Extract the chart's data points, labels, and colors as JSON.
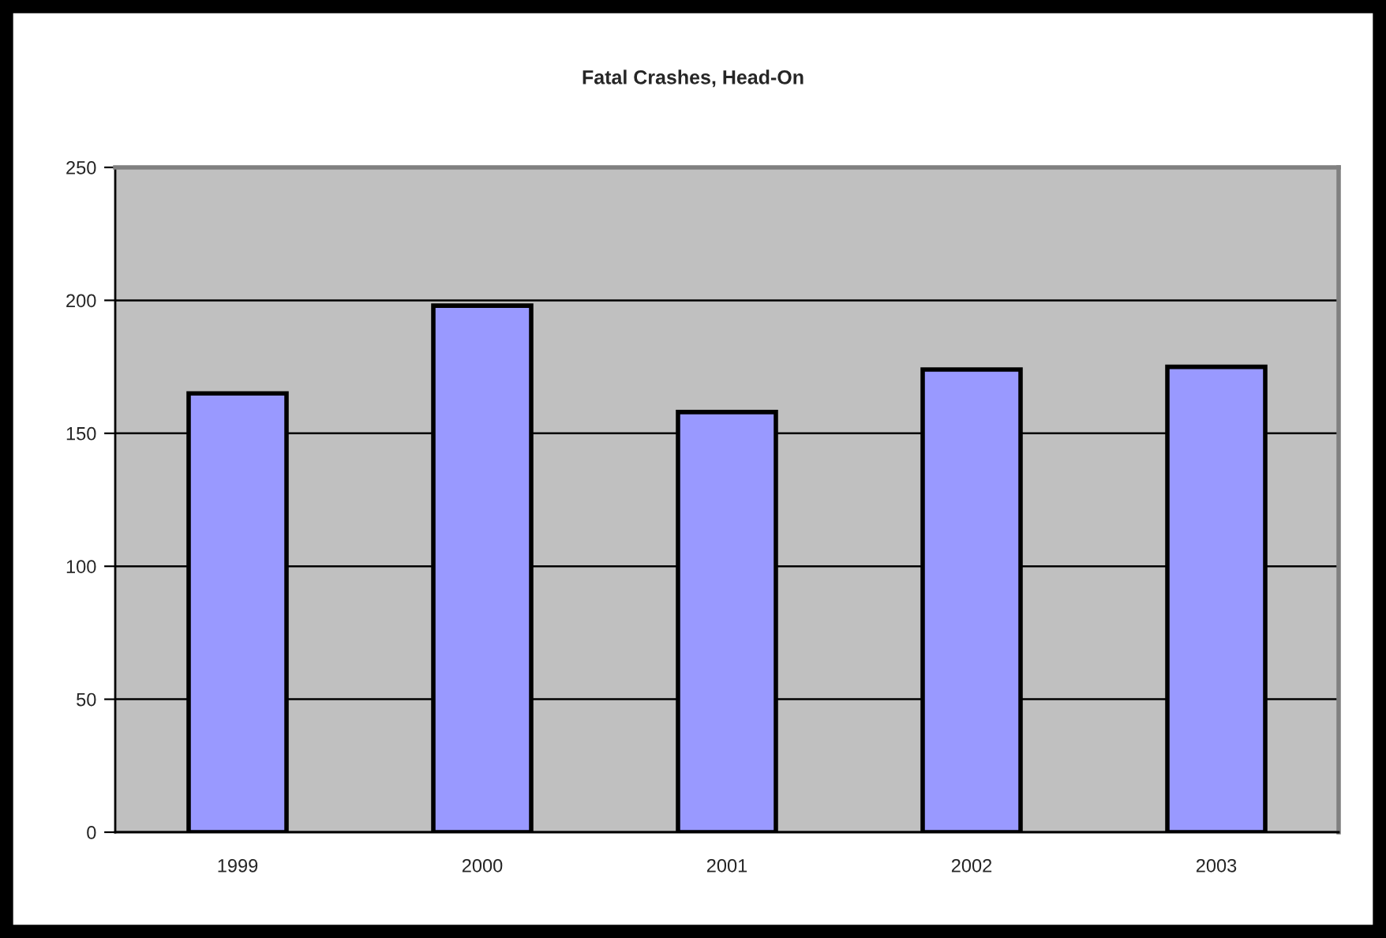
{
  "chart_data": {
    "type": "bar",
    "title": "Fatal Crashes, Head-On",
    "categories": [
      "1999",
      "2000",
      "2001",
      "2002",
      "2003"
    ],
    "values": [
      165,
      198,
      158,
      174,
      175
    ],
    "color": "#9999ff",
    "ylim": [
      0,
      250
    ],
    "yticks": [
      0,
      50,
      100,
      150,
      200,
      250
    ],
    "grid": "y"
  }
}
